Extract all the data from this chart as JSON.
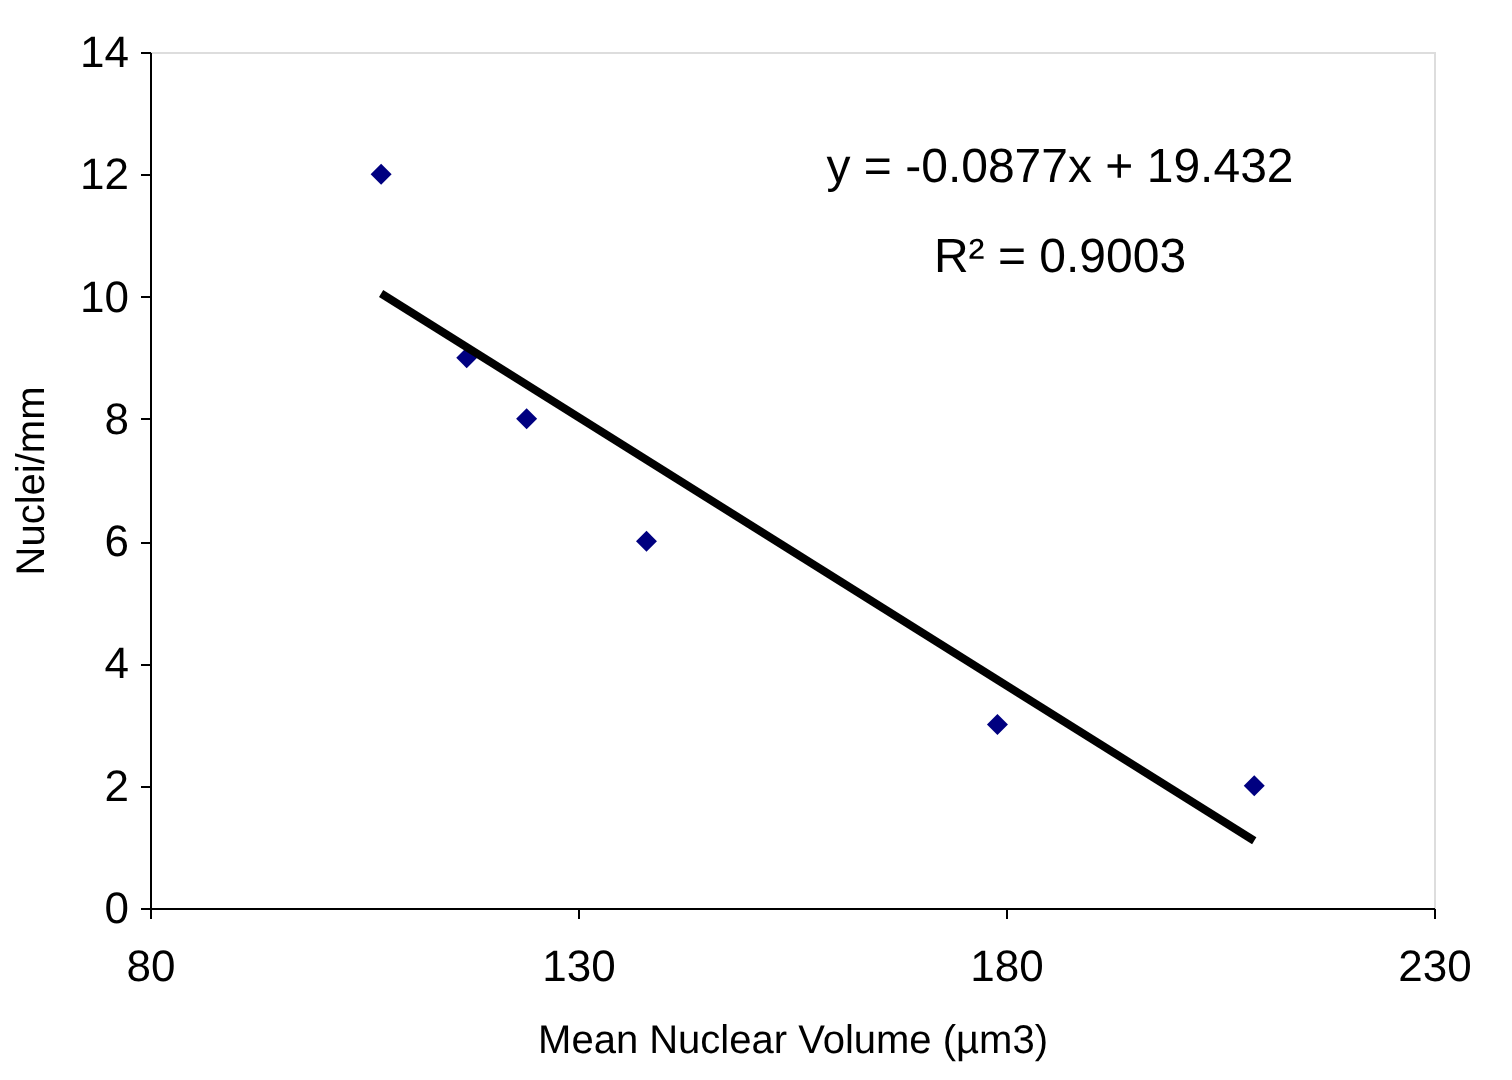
{
  "chart_data": {
    "type": "scatter",
    "xlabel": "Mean Nuclear Volume (µm3)",
    "ylabel": "Nuclei/mm",
    "x": [
      107,
      117,
      124,
      138,
      179,
      209
    ],
    "series": [
      {
        "color": "#000080",
        "marker": "diamond",
        "values": [
          12,
          9,
          8,
          6,
          3,
          2
        ]
      },
      {
        "type": "line",
        "color": "#000000",
        "line_style": "solid",
        "x": [
          107,
          209
        ],
        "values": [
          10.05,
          1.1
        ]
      }
    ],
    "xlim": [
      80,
      230
    ],
    "xticks": [
      80,
      130,
      180,
      230
    ],
    "ylim": [
      0,
      14
    ],
    "yticks": [
      0,
      2,
      4,
      6,
      8,
      10,
      12,
      14
    ],
    "grid": false,
    "annotations": [
      "y = -0.0877x + 19.432",
      "R² = 0.9003"
    ]
  }
}
